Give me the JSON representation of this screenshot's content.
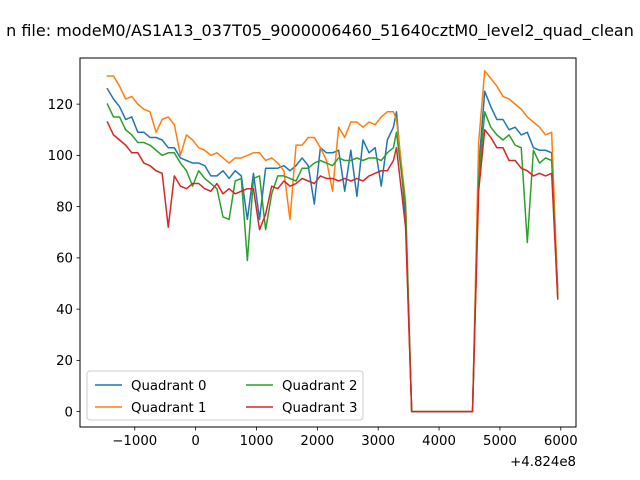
{
  "chart_data": {
    "type": "line",
    "title": "n file: modeM0/AS1A13_037T05_9000006460_51640cztM0_level2_quad_clean",
    "xlabel": "",
    "ylabel": "",
    "x_offset_label": "+4.824e8",
    "xlim": [
      -1900,
      6250
    ],
    "ylim": [
      -6,
      138
    ],
    "x_ticks": [
      -1000,
      0,
      1000,
      2000,
      3000,
      4000,
      5000,
      6000
    ],
    "x_tick_labels": [
      "−1000",
      "0",
      "1000",
      "2000",
      "3000",
      "4000",
      "5000",
      "6000"
    ],
    "y_ticks": [
      0,
      20,
      40,
      60,
      80,
      100,
      120
    ],
    "y_tick_labels": [
      "0",
      "20",
      "40",
      "60",
      "80",
      "100",
      "120"
    ],
    "grid": false,
    "legend": {
      "placement": "lower-left",
      "columns": 2
    },
    "x": [
      -1450,
      -1350,
      -1250,
      -1150,
      -1050,
      -950,
      -850,
      -750,
      -650,
      -550,
      -450,
      -350,
      -250,
      -150,
      -50,
      50,
      150,
      250,
      350,
      450,
      550,
      650,
      750,
      850,
      950,
      1050,
      1150,
      1250,
      1350,
      1450,
      1550,
      1650,
      1750,
      1850,
      1950,
      2050,
      2150,
      2250,
      2350,
      2450,
      2550,
      2650,
      2750,
      2850,
      2950,
      3050,
      3150,
      3250,
      3300,
      3450,
      3550,
      3650,
      3750,
      3850,
      3950,
      4050,
      4150,
      4250,
      4350,
      4450,
      4550,
      4650,
      4750,
      4850,
      4950,
      5050,
      5150,
      5250,
      5350,
      5450,
      5550,
      5650,
      5750,
      5850,
      5950
    ],
    "series": [
      {
        "name": "Quadrant 0",
        "color": "#1f77b4",
        "values": [
          126,
          122,
          119,
          114,
          115,
          109,
          109,
          107,
          107,
          106,
          103,
          103,
          99,
          98,
          97,
          97,
          96,
          92,
          92,
          94,
          91,
          94,
          92,
          75,
          93,
          75,
          95,
          95,
          95,
          96,
          94,
          96,
          99,
          96,
          81,
          103,
          101,
          101,
          102,
          86,
          102,
          84,
          106,
          101,
          103,
          88,
          106,
          111,
          117,
          75,
          0,
          0,
          0,
          0,
          0,
          0,
          0,
          0,
          0,
          0,
          0,
          95,
          125,
          119,
          114,
          114,
          110,
          111,
          108,
          109,
          103,
          102,
          102,
          101,
          48
        ]
      },
      {
        "name": "Quadrant 1",
        "color": "#ff7f0e",
        "values": [
          131,
          131,
          127,
          122,
          123,
          120,
          118,
          117,
          109,
          114,
          115,
          112,
          100,
          108,
          106,
          103,
          102,
          100,
          101,
          99,
          97,
          99,
          99,
          100,
          101,
          101,
          98,
          99,
          97,
          94,
          75,
          104,
          104,
          107,
          107,
          103,
          98,
          86,
          111,
          107,
          113,
          113,
          111,
          113,
          112,
          115,
          117,
          117,
          114,
          82,
          0,
          0,
          0,
          0,
          0,
          0,
          0,
          0,
          0,
          0,
          0,
          105,
          133,
          130,
          127,
          123,
          122,
          120,
          118,
          115,
          113,
          111,
          108,
          109,
          46
        ]
      },
      {
        "name": "Quadrant 2",
        "color": "#2ca02c",
        "values": [
          120,
          115,
          115,
          110,
          108,
          105,
          105,
          104,
          102,
          100,
          101,
          101,
          97,
          94,
          88,
          94,
          91,
          89,
          87,
          76,
          75,
          90,
          91,
          59,
          91,
          92,
          71,
          85,
          92,
          92,
          91,
          90,
          95,
          95,
          97,
          98,
          97,
          96,
          99,
          98,
          98,
          99,
          98,
          99,
          99,
          98,
          101,
          103,
          109,
          80,
          0,
          0,
          0,
          0,
          0,
          0,
          0,
          0,
          0,
          0,
          0,
          90,
          117,
          111,
          108,
          106,
          108,
          104,
          103,
          66,
          102,
          97,
          99,
          98,
          44
        ]
      },
      {
        "name": "Quadrant 3",
        "color": "#d62728",
        "values": [
          113,
          108,
          106,
          104,
          101,
          101,
          97,
          96,
          94,
          93,
          72,
          92,
          88,
          87,
          89,
          89,
          87,
          86,
          89,
          85,
          87,
          85,
          86,
          87,
          87,
          71,
          77,
          88,
          87,
          90,
          88,
          89,
          91,
          90,
          89,
          92,
          91,
          91,
          90,
          91,
          90,
          91,
          90,
          92,
          93,
          94,
          94,
          98,
          103,
          72,
          0,
          0,
          0,
          0,
          0,
          0,
          0,
          0,
          0,
          0,
          0,
          86,
          110,
          107,
          103,
          103,
          98,
          98,
          95,
          94,
          92,
          93,
          92,
          93,
          44
        ]
      }
    ]
  }
}
